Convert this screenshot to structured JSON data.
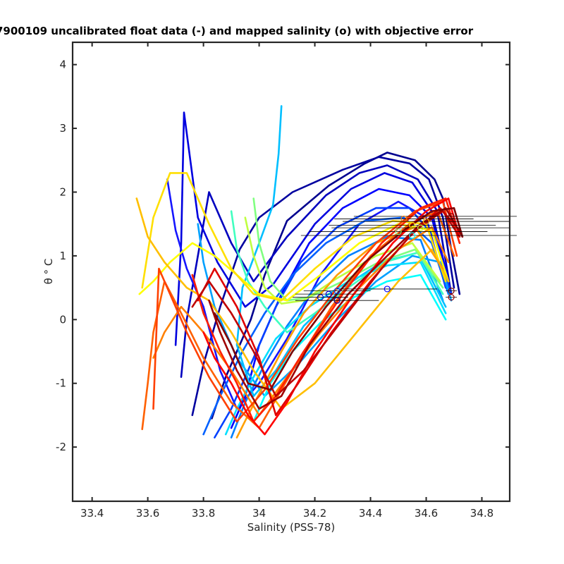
{
  "chart_data": {
    "type": "line",
    "title": "7900109 uncalibrated float data (-) and mapped salinity (o) with objective error",
    "xlabel": "Salinity (PSS-78)",
    "ylabel": "θ ° C",
    "xlim": [
      33.33,
      34.9
    ],
    "ylim": [
      -2.85,
      4.35
    ],
    "xticks": [
      "33.4",
      "33.6",
      "33.8",
      "34",
      "34.2",
      "34.4",
      "34.6",
      "34.8"
    ],
    "yticks": [
      "-2",
      "-1",
      "0",
      "1",
      "2",
      "3",
      "4"
    ],
    "grid": false,
    "legend": "none",
    "colormap": "jet",
    "series": [
      {
        "color": "#00008f",
        "x": [
          33.83,
          33.88,
          33.97,
          34.02,
          34.1,
          34.25,
          34.38,
          34.46,
          34.56,
          34.63,
          34.66,
          34.69,
          34.72
        ],
        "y": [
          -1.55,
          -0.9,
          0.0,
          0.7,
          1.55,
          2.1,
          2.45,
          2.62,
          2.5,
          2.2,
          1.9,
          1.1,
          0.4
        ]
      },
      {
        "color": "#00009f",
        "x": [
          33.76,
          33.8,
          33.86,
          33.93,
          34.0,
          34.12,
          34.3,
          34.43,
          34.54,
          34.61,
          34.66,
          34.7
        ],
        "y": [
          -1.5,
          -0.7,
          0.2,
          1.1,
          1.6,
          2.0,
          2.35,
          2.55,
          2.45,
          2.2,
          1.6,
          0.5
        ]
      },
      {
        "color": "#0000bf",
        "x": [
          33.72,
          33.74,
          33.78,
          33.82,
          33.9,
          33.98,
          34.1,
          34.24,
          34.36,
          34.46,
          34.57,
          34.64,
          34.69
        ],
        "y": [
          -0.9,
          0.0,
          1.0,
          2.0,
          1.2,
          0.6,
          1.3,
          1.95,
          2.3,
          2.42,
          2.2,
          1.7,
          0.4
        ]
      },
      {
        "color": "#0000df",
        "x": [
          33.7,
          33.72,
          33.73,
          33.78,
          33.85,
          33.95,
          34.05,
          34.2,
          34.33,
          34.45,
          34.55,
          34.62,
          34.68
        ],
        "y": [
          -0.4,
          1.2,
          3.25,
          1.6,
          0.9,
          0.2,
          0.55,
          1.5,
          2.05,
          2.3,
          2.15,
          1.7,
          0.6
        ]
      },
      {
        "color": "#0000ff",
        "x": [
          33.9,
          33.95,
          34.0,
          34.08,
          34.18,
          34.3,
          34.43,
          34.54,
          34.62,
          34.68
        ],
        "y": [
          -1.7,
          -1.2,
          -0.4,
          0.4,
          1.2,
          1.75,
          2.05,
          1.95,
          1.6,
          0.6
        ]
      },
      {
        "color": "#1515ff",
        "x": [
          33.67,
          33.7,
          33.74,
          33.8,
          33.86,
          33.92,
          34.0,
          34.1,
          34.22,
          34.36,
          34.5,
          34.6,
          34.67
        ],
        "y": [
          2.2,
          1.4,
          0.8,
          0.2,
          -0.8,
          -1.4,
          -1.0,
          -0.3,
          0.7,
          1.5,
          1.85,
          1.6,
          0.5
        ]
      },
      {
        "color": "#0040ff",
        "x": [
          33.84,
          33.9,
          33.98,
          34.06,
          34.15,
          34.28,
          34.42,
          34.54,
          34.63,
          34.69
        ],
        "y": [
          -1.85,
          -1.4,
          -0.6,
          0.2,
          0.9,
          1.45,
          1.75,
          1.75,
          1.3,
          0.4
        ]
      },
      {
        "color": "#0060ff",
        "x": [
          33.8,
          33.86,
          33.94,
          34.02,
          34.12,
          34.24,
          34.38,
          34.52,
          34.62,
          34.68
        ],
        "y": [
          -1.8,
          -1.2,
          -0.5,
          0.1,
          0.7,
          1.2,
          1.55,
          1.6,
          1.2,
          0.4
        ]
      },
      {
        "color": "#0080ff",
        "x": [
          33.9,
          33.95,
          34.02,
          34.1,
          34.2,
          34.32,
          34.46,
          34.58,
          34.66
        ],
        "y": [
          -1.85,
          -1.3,
          -0.7,
          -0.1,
          0.5,
          1.0,
          1.3,
          1.25,
          0.3
        ]
      },
      {
        "color": "#00a0ff",
        "x": [
          33.78,
          33.8,
          33.84,
          33.92,
          34.02,
          34.14,
          34.28,
          34.42,
          34.55,
          34.65,
          34.69
        ],
        "y": [
          1.5,
          0.9,
          0.2,
          -0.6,
          -1.2,
          -0.7,
          0.0,
          0.6,
          1.0,
          0.9,
          0.3
        ]
      },
      {
        "color": "#00bfff",
        "x": [
          34.08,
          34.07,
          34.05,
          34.0,
          33.94,
          33.92,
          33.98,
          34.06,
          34.16,
          34.3,
          34.44,
          34.57,
          34.67
        ],
        "y": [
          3.35,
          2.6,
          1.8,
          1.2,
          0.5,
          -0.4,
          -1.2,
          -0.8,
          -0.1,
          0.5,
          0.9,
          1.05,
          0.2
        ]
      },
      {
        "color": "#00dfff",
        "x": [
          33.88,
          33.92,
          33.98,
          34.06,
          34.18,
          34.32,
          34.46,
          34.58,
          34.67
        ],
        "y": [
          -1.8,
          -1.4,
          -0.9,
          -0.3,
          0.2,
          0.6,
          0.85,
          0.9,
          0.1
        ]
      },
      {
        "color": "#00ffff",
        "x": [
          33.98,
          34.04,
          34.12,
          34.22,
          34.34,
          34.46,
          34.58,
          34.67
        ],
        "y": [
          -1.6,
          -1.0,
          -0.5,
          -0.05,
          0.35,
          0.6,
          0.7,
          0.0
        ]
      },
      {
        "color": "#40ffbf",
        "x": [
          33.9,
          33.92,
          33.96,
          34.02,
          34.1,
          34.2,
          34.32,
          34.45,
          34.57,
          34.66
        ],
        "y": [
          1.7,
          1.1,
          0.6,
          0.2,
          -0.2,
          0.1,
          0.5,
          0.9,
          1.05,
          0.4
        ]
      },
      {
        "color": "#80ff80",
        "x": [
          33.98,
          34.0,
          34.04,
          34.1,
          34.18,
          34.3,
          34.43,
          34.56,
          34.66
        ],
        "y": [
          1.9,
          1.2,
          0.6,
          0.3,
          0.35,
          0.6,
          0.9,
          1.1,
          0.5
        ]
      },
      {
        "color": "#bfff40",
        "x": [
          33.95,
          33.98,
          34.02,
          34.08,
          34.16,
          34.28,
          34.42,
          34.55,
          34.65
        ],
        "y": [
          1.6,
          1.0,
          0.5,
          0.25,
          0.3,
          0.65,
          1.0,
          1.2,
          0.6
        ]
      },
      {
        "color": "#ffff00",
        "x": [
          33.57,
          33.62,
          33.68,
          33.76,
          33.84,
          33.92,
          34.0,
          34.1,
          34.22,
          34.36,
          34.5,
          34.62,
          34.68
        ],
        "y": [
          0.4,
          0.6,
          0.9,
          1.2,
          1.0,
          0.7,
          0.4,
          0.3,
          0.7,
          1.2,
          1.5,
          1.4,
          0.6
        ]
      },
      {
        "color": "#ffdf00",
        "x": [
          33.58,
          33.62,
          33.68,
          33.74,
          33.82,
          33.9,
          33.98,
          34.08,
          34.2,
          34.34,
          34.48,
          34.6,
          34.67
        ],
        "y": [
          0.5,
          1.6,
          2.3,
          2.3,
          1.5,
          0.8,
          0.4,
          0.3,
          0.8,
          1.3,
          1.55,
          1.5,
          0.6
        ]
      },
      {
        "color": "#ffbf00",
        "x": [
          33.56,
          33.6,
          33.66,
          33.74,
          33.82,
          33.9,
          33.98,
          34.08,
          34.2,
          34.35,
          34.5,
          34.62,
          34.68
        ],
        "y": [
          1.9,
          1.3,
          0.9,
          0.5,
          0.3,
          -0.2,
          -0.8,
          -1.4,
          -1.0,
          -0.2,
          0.6,
          1.1,
          0.6
        ]
      },
      {
        "color": "#ff9f00",
        "x": [
          33.92,
          33.96,
          34.02,
          34.08,
          34.16,
          34.28,
          34.42,
          34.56,
          34.66
        ],
        "y": [
          -1.85,
          -1.5,
          -1.0,
          -0.5,
          0.1,
          0.7,
          1.2,
          1.45,
          0.8
        ]
      },
      {
        "color": "#ff8000",
        "x": [
          33.62,
          33.66,
          33.72,
          33.8,
          33.9,
          34.0,
          34.1,
          34.22,
          34.36,
          34.5,
          34.62,
          34.68
        ],
        "y": [
          -0.6,
          -0.2,
          0.2,
          -0.2,
          -0.8,
          -1.5,
          -0.9,
          -0.2,
          0.5,
          1.1,
          1.45,
          0.9
        ]
      },
      {
        "color": "#ff6000",
        "x": [
          33.58,
          33.6,
          33.62,
          33.66,
          33.72,
          33.8,
          33.9,
          34.0,
          34.12,
          34.26,
          34.4,
          34.54,
          34.64,
          34.7
        ],
        "y": [
          -1.72,
          -1.0,
          -0.2,
          0.6,
          0.1,
          -0.6,
          -1.3,
          -1.7,
          -0.8,
          0.2,
          1.0,
          1.5,
          1.7,
          1.0
        ]
      },
      {
        "color": "#ff4000",
        "x": [
          33.62,
          33.64,
          33.68,
          33.74,
          33.82,
          33.92,
          34.02,
          34.14,
          34.28,
          34.42,
          34.56,
          34.66,
          34.71
        ],
        "y": [
          -1.4,
          0.8,
          0.4,
          -0.2,
          -0.9,
          -1.6,
          -1.1,
          -0.3,
          0.5,
          1.2,
          1.7,
          1.85,
          1.0
        ]
      },
      {
        "color": "#ff2000",
        "x": [
          33.76,
          33.8,
          33.86,
          33.92,
          33.98,
          34.06,
          34.16,
          34.3,
          34.44,
          34.58,
          34.67,
          34.72
        ],
        "y": [
          0.7,
          0.1,
          -0.5,
          -1.0,
          -1.6,
          -1.2,
          -0.5,
          0.4,
          1.2,
          1.75,
          1.9,
          1.2
        ]
      },
      {
        "color": "#ff0000",
        "x": [
          33.8,
          33.84,
          33.9,
          33.96,
          34.02,
          34.1,
          34.2,
          34.34,
          34.48,
          34.6,
          34.68,
          34.72
        ],
        "y": [
          -0.2,
          -0.6,
          -1.0,
          -1.5,
          -1.8,
          -1.3,
          -0.5,
          0.4,
          1.2,
          1.7,
          1.9,
          1.3
        ]
      },
      {
        "color": "#df0000",
        "x": [
          33.78,
          33.84,
          33.92,
          34.0,
          34.06,
          34.14,
          34.26,
          34.4,
          34.54,
          34.65,
          34.72
        ],
        "y": [
          0.3,
          0.8,
          0.2,
          -0.6,
          -1.5,
          -1.0,
          -0.2,
          0.6,
          1.3,
          1.75,
          1.4
        ]
      },
      {
        "color": "#bf0000",
        "x": [
          33.76,
          33.82,
          33.9,
          33.98,
          34.06,
          34.16,
          34.3,
          34.44,
          34.56,
          34.66,
          34.72
        ],
        "y": [
          0.2,
          0.6,
          0.1,
          -0.5,
          -1.2,
          -0.8,
          0.0,
          0.8,
          1.4,
          1.7,
          1.3
        ]
      },
      {
        "color": "#9f0000",
        "x": [
          33.82,
          33.86,
          33.92,
          34.0,
          34.08,
          34.18,
          34.32,
          34.46,
          34.58,
          34.67,
          34.73
        ],
        "y": [
          0.3,
          -0.2,
          -0.8,
          -1.4,
          -1.2,
          -0.4,
          0.4,
          1.0,
          1.5,
          1.75,
          1.3
        ]
      },
      {
        "color": "#800000",
        "x": [
          33.84,
          33.9,
          33.96,
          34.04,
          34.12,
          34.24,
          34.38,
          34.52,
          34.62,
          34.7,
          34.73
        ],
        "y": [
          0.1,
          -0.4,
          -1.0,
          -1.1,
          -0.5,
          0.2,
          0.9,
          1.4,
          1.7,
          1.75,
          1.3
        ]
      }
    ],
    "mapped_salinity": [
      {
        "x": 34.69,
        "y": 1.62,
        "xerr": 0.35,
        "color": "#800000"
      },
      {
        "x": 34.52,
        "y": 1.58,
        "xerr": 0.25,
        "color": "#ff8000"
      },
      {
        "x": 34.6,
        "y": 1.54,
        "xerr": 0.3,
        "color": "#ffbf00"
      },
      {
        "x": 34.55,
        "y": 1.48,
        "xerr": 0.3,
        "color": "#ffff00"
      },
      {
        "x": 34.58,
        "y": 1.44,
        "xerr": 0.32,
        "color": "#bfff40"
      },
      {
        "x": 34.5,
        "y": 1.38,
        "xerr": 0.32,
        "color": "#80ff80"
      },
      {
        "x": 34.55,
        "y": 1.32,
        "xerr": 0.4,
        "color": "#00ffff"
      },
      {
        "x": 34.46,
        "y": 0.48,
        "xerr": 0.18,
        "color": "#0000ff"
      },
      {
        "x": 34.28,
        "y": 0.45,
        "xerr": 0.12,
        "color": "#0040ff"
      },
      {
        "x": 34.25,
        "y": 0.4,
        "xerr": 0.12,
        "color": "#0000df"
      },
      {
        "x": 34.22,
        "y": 0.35,
        "xerr": 0.1,
        "color": "#0000bf"
      },
      {
        "x": 34.28,
        "y": 0.3,
        "xerr": 0.15,
        "color": "#00009f"
      },
      {
        "x": 34.69,
        "y": 0.45,
        "xerr": 0.02,
        "color": "#800000"
      },
      {
        "x": 34.69,
        "y": 0.35,
        "xerr": 0.02,
        "color": "#9f0000"
      }
    ]
  }
}
